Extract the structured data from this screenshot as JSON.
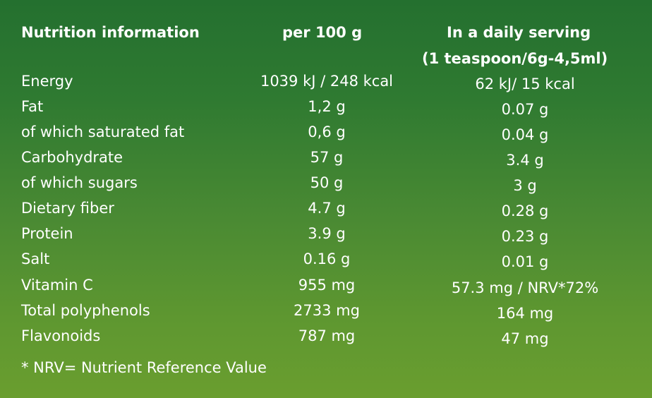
{
  "table": {
    "headers": {
      "name": "Nutrition information",
      "per100": "per 100 g",
      "daily": "In a daily serving",
      "daily_sub": "(1 teaspoon/6g-4,5ml)"
    },
    "rows": [
      {
        "name": "Energy",
        "per100": "1039 kJ / 248 kcal",
        "daily": "62 kJ/ 15 kcal"
      },
      {
        "name": "Fat",
        "per100": "1,2 g",
        "daily": "0.07 g"
      },
      {
        "name": "of which saturated fat",
        "per100": "0,6 g",
        "daily": "0.04 g"
      },
      {
        "name": "Carbohydrate",
        "per100": "57 g",
        "daily": "3.4 g"
      },
      {
        "name": "of which sugars",
        "per100": "50 g",
        "daily": "3 g"
      },
      {
        "name": "Dietary fiber",
        "per100": "4.7 g",
        "daily": "0.28 g"
      },
      {
        "name": "Protein",
        "per100": "3.9 g",
        "daily": "0.23 g"
      },
      {
        "name": "Salt",
        "per100": "0.16 g",
        "daily": "0.01 g"
      },
      {
        "name": "Vitamin C",
        "per100": "955 mg",
        "daily": "57.3 mg / NRV*72%"
      },
      {
        "name": "Total polyphenols",
        "per100": "2733 mg",
        "daily": "164 mg"
      },
      {
        "name": "Flavonoids",
        "per100": "787 mg",
        "daily": "47 mg"
      }
    ],
    "footnote": "* NRV= Nutrient Reference Value"
  },
  "colors": {
    "background_top": "#24702f",
    "background_bottom": "#6a9e2f",
    "text": "#ffffff"
  }
}
